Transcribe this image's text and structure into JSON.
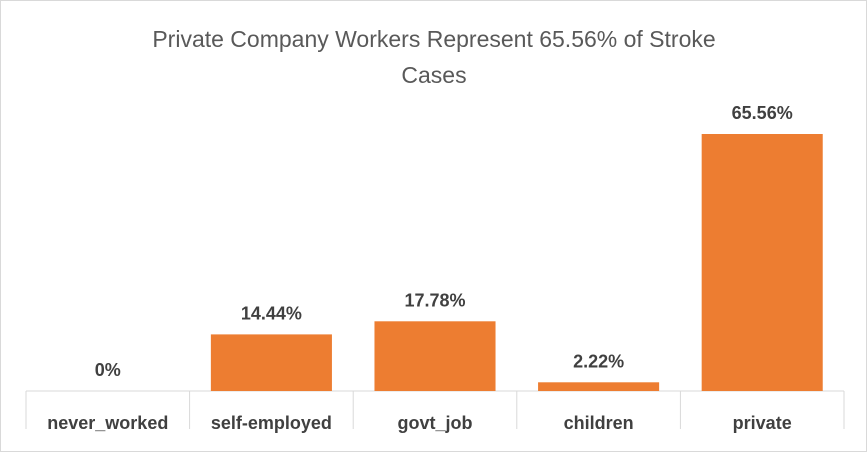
{
  "chart_data": {
    "type": "bar",
    "title": "Private Company Workers Represent 65.56% of Stroke Cases",
    "title_lines": [
      "Private Company Workers Represent 65.56% of Stroke",
      "Cases"
    ],
    "categories": [
      "never_worked",
      "self-employed",
      "govt_job",
      "children",
      "private"
    ],
    "values": [
      0,
      14.44,
      17.78,
      2.22,
      65.56
    ],
    "data_labels": [
      "0%",
      "14.44%",
      "17.78%",
      "2.22%",
      "65.56%"
    ],
    "xlabel": "",
    "ylabel": "",
    "ylim": [
      0,
      70
    ],
    "grid": false,
    "legend": "none",
    "bar_color": "#ED7D31",
    "axis_color": "#d9d9d9"
  }
}
